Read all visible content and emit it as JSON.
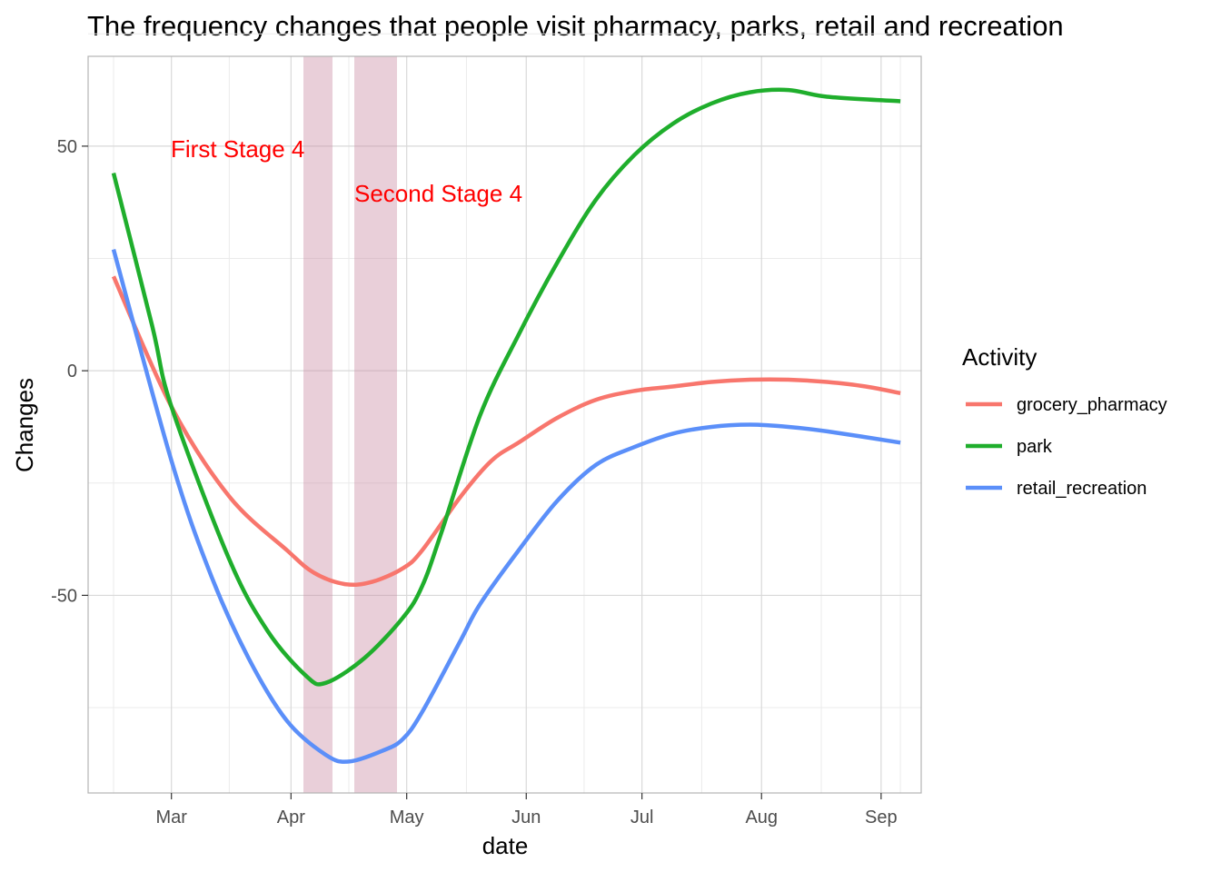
{
  "chart_data": {
    "type": "line",
    "title": "The frequency changes that people visit pharmacy, parks, retail and recreation",
    "xlabel": "date",
    "ylabel": "Changes",
    "x_tick_labels": [
      "Mar",
      "Apr",
      "May",
      "Jun",
      "Jul",
      "Aug",
      "Sep"
    ],
    "y_tick_labels": [
      "50",
      "0",
      "-50"
    ],
    "ylim": [
      -94,
      70
    ],
    "grid": true,
    "legend": {
      "title": "Activity",
      "position": "right"
    },
    "annotations": [
      {
        "text": "First Stage 4",
        "color": "#ff0000"
      },
      {
        "text": "Second Stage 4",
        "color": "#ff0000"
      }
    ],
    "shaded_periods_color": "#c9879f",
    "series": [
      {
        "name": "grocery_pharmacy",
        "color": "#f8766d",
        "points": [
          [
            -15,
            21
          ],
          [
            0,
            -8
          ],
          [
            15,
            -28
          ],
          [
            30,
            -40
          ],
          [
            37,
            -45
          ],
          [
            45,
            -47.5
          ],
          [
            52,
            -47
          ],
          [
            60,
            -44
          ],
          [
            65,
            -40
          ],
          [
            75,
            -28
          ],
          [
            83,
            -20
          ],
          [
            90,
            -16
          ],
          [
            100,
            -10.5
          ],
          [
            110,
            -6.5
          ],
          [
            120,
            -4.5
          ],
          [
            130,
            -3.5
          ],
          [
            140,
            -2.5
          ],
          [
            150,
            -2
          ],
          [
            160,
            -2
          ],
          [
            170,
            -2.5
          ],
          [
            180,
            -3.5
          ],
          [
            189,
            -5
          ]
        ]
      },
      {
        "name": "park",
        "color": "#1fae2c",
        "points": [
          [
            -15,
            44
          ],
          [
            -5,
            10
          ],
          [
            0,
            -8
          ],
          [
            15,
            -42
          ],
          [
            25,
            -58
          ],
          [
            35,
            -68
          ],
          [
            40,
            -69.5
          ],
          [
            50,
            -64
          ],
          [
            60,
            -55
          ],
          [
            65,
            -48
          ],
          [
            70,
            -36
          ],
          [
            80,
            -10
          ],
          [
            90,
            8
          ],
          [
            100,
            24
          ],
          [
            110,
            38
          ],
          [
            120,
            48
          ],
          [
            130,
            55
          ],
          [
            140,
            59.5
          ],
          [
            150,
            62
          ],
          [
            160,
            62.5
          ],
          [
            170,
            61
          ],
          [
            189,
            60
          ]
        ]
      },
      {
        "name": "retail_recreation",
        "color": "#5b8ff9",
        "points": [
          [
            -15,
            27
          ],
          [
            0,
            -20
          ],
          [
            10,
            -45
          ],
          [
            20,
            -64
          ],
          [
            30,
            -78
          ],
          [
            40,
            -85.5
          ],
          [
            46,
            -87
          ],
          [
            55,
            -84.5
          ],
          [
            60,
            -82
          ],
          [
            65,
            -76
          ],
          [
            75,
            -60
          ],
          [
            80,
            -52
          ],
          [
            90,
            -40
          ],
          [
            100,
            -29
          ],
          [
            110,
            -21
          ],
          [
            120,
            -17
          ],
          [
            130,
            -14
          ],
          [
            140,
            -12.5
          ],
          [
            150,
            -12
          ],
          [
            160,
            -12.5
          ],
          [
            170,
            -13.5
          ],
          [
            189,
            -16
          ]
        ]
      }
    ]
  }
}
